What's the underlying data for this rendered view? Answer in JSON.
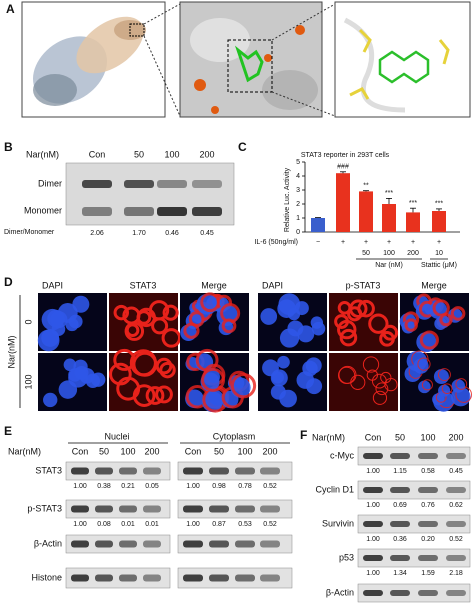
{
  "panel_a": {
    "label": "A"
  },
  "panel_b": {
    "label": "B",
    "axis_label": "Nar(nM)",
    "lanes": [
      "Con",
      "50",
      "100",
      "200"
    ],
    "rows": [
      "Dimer",
      "Monomer"
    ],
    "ratio_label": "Dimer/Monomer",
    "ratios": [
      "2.06",
      "1.70",
      "0.46",
      "0.45"
    ]
  },
  "chart_data": {
    "type": "bar",
    "panel_label": "C",
    "title": "STAT3 reporter in 293T cells",
    "y_label": "Relative Luc. Activity",
    "categories": [
      null,
      null,
      null,
      null,
      null,
      null
    ],
    "values": [
      1.0,
      4.2,
      2.9,
      2.0,
      1.4,
      1.5
    ],
    "errors": [
      0.03,
      0.1,
      0.05,
      0.4,
      0.3,
      0.15
    ],
    "colors": [
      "#3a5fcd",
      "#e8321e",
      "#e8321e",
      "#e8321e",
      "#e8321e",
      "#e8321e"
    ],
    "annotations": [
      null,
      "###",
      "**",
      "***",
      "***",
      "***"
    ],
    "ylim": [
      0,
      5
    ],
    "yticks": [
      0,
      1,
      2,
      3,
      4,
      5
    ],
    "treatment_label": "IL-6 (50ng/ml)",
    "treatment_signs": [
      "−",
      "+",
      "+",
      "+",
      "+",
      "+"
    ],
    "doses": [
      null,
      null,
      "50",
      "100",
      "200",
      "10"
    ],
    "dose_group_labels": [
      "Nar (nM)",
      "Stattic (μM)"
    ]
  },
  "panel_d": {
    "label": "D",
    "headers": [
      "DAPI",
      "STAT3",
      "Merge",
      "DAPI",
      "p-STAT3",
      "Merge"
    ],
    "axis_label": "Nar(nM)",
    "rows": [
      "0",
      "100"
    ]
  },
  "panel_e": {
    "label": "E",
    "axis_label": "Nar(nM)",
    "groups": [
      "Nuclei",
      "Cytoplasm"
    ],
    "lanes": [
      "Con",
      "50",
      "100",
      "200",
      "Con",
      "50",
      "100",
      "200"
    ],
    "rows": [
      {
        "name": "STAT3",
        "values": [
          "1.00",
          "0.38",
          "0.21",
          "0.05",
          "1.00",
          "0.98",
          "0.78",
          "0.52"
        ]
      },
      {
        "name": "p-STAT3",
        "values": [
          "1.00",
          "0.08",
          "0.01",
          "0.01",
          "1.00",
          "0.87",
          "0.53",
          "0.52"
        ]
      },
      {
        "name": "β-Actin"
      },
      {
        "name": "Histone"
      }
    ]
  },
  "panel_f": {
    "label": "F",
    "axis_label": "Nar(nM)",
    "lanes": [
      "Con",
      "50",
      "100",
      "200"
    ],
    "rows": [
      {
        "name": "c-Myc",
        "values": [
          "1.00",
          "1.15",
          "0.58",
          "0.45"
        ]
      },
      {
        "name": "Cyclin D1",
        "values": [
          "1.00",
          "0.69",
          "0.76",
          "0.62"
        ]
      },
      {
        "name": "Survivin",
        "values": [
          "1.00",
          "0.36",
          "0.20",
          "0.52"
        ]
      },
      {
        "name": "p53",
        "values": [
          "1.00",
          "1.34",
          "1.59",
          "2.18"
        ]
      },
      {
        "name": "β-Actin"
      }
    ]
  }
}
